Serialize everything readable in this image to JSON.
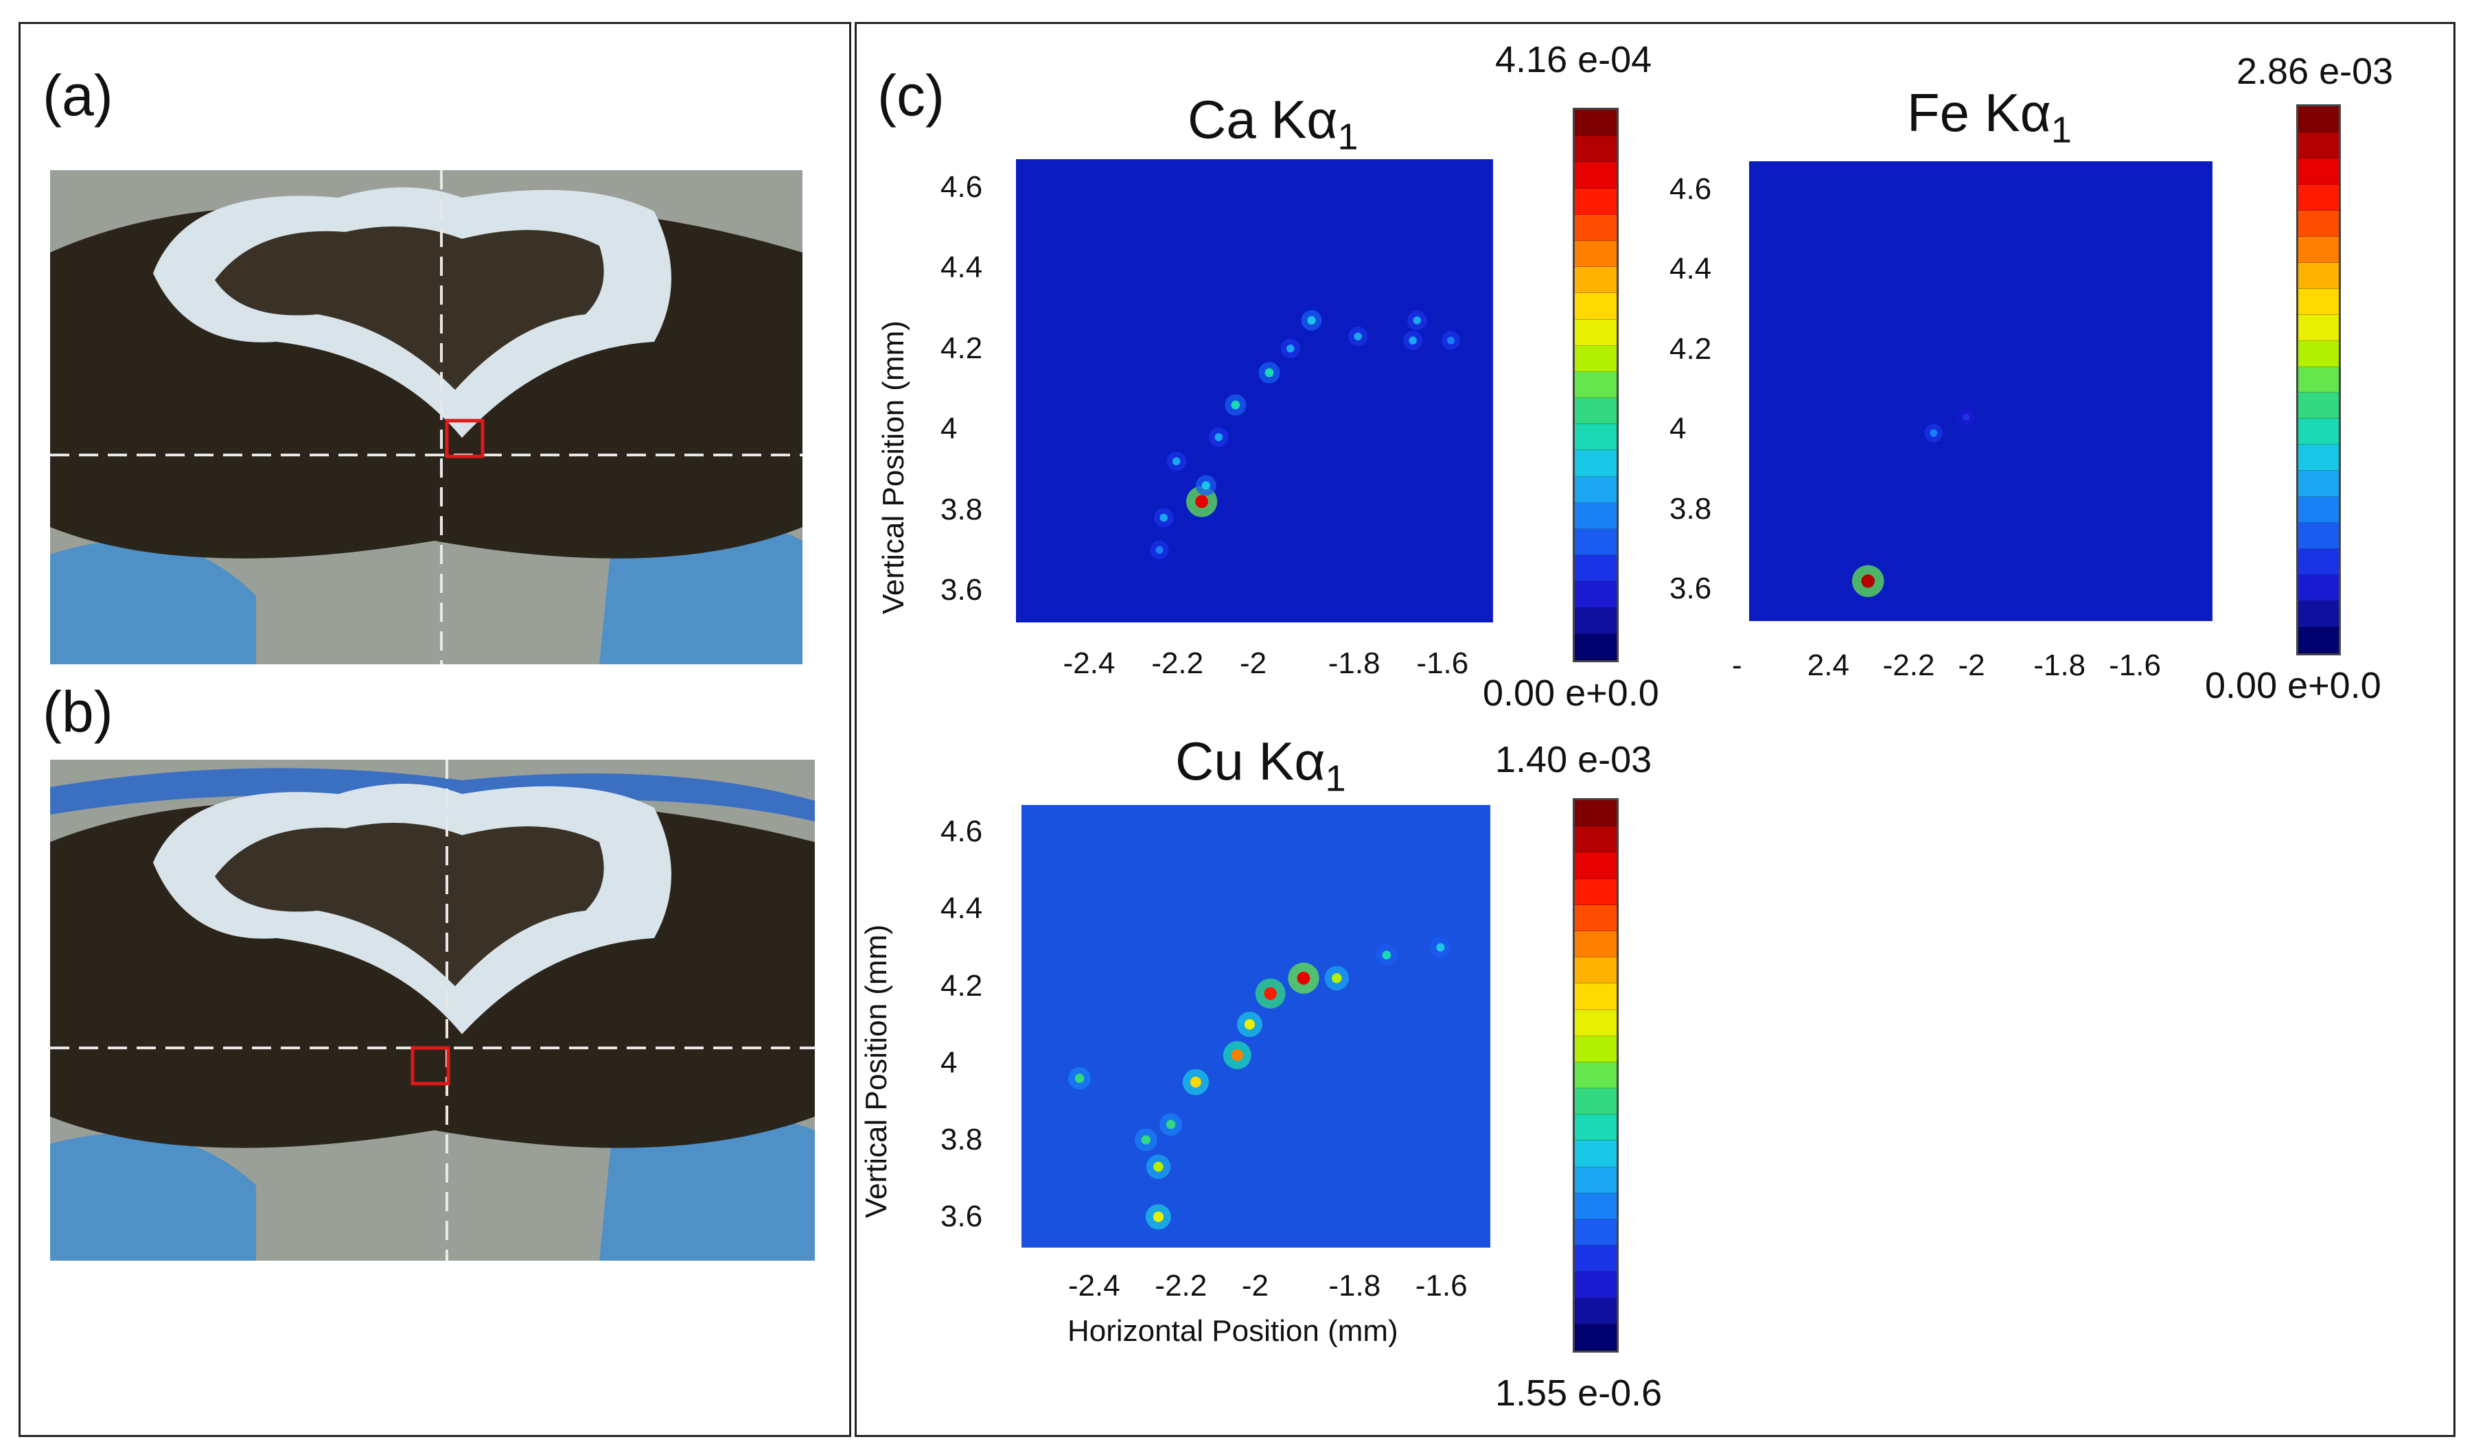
{
  "panels": {
    "a": "(a)",
    "b": "(b)",
    "c": "(c)"
  },
  "colorbar_colors": [
    "#7f0000",
    "#b30000",
    "#e60000",
    "#ff1a00",
    "#ff4d00",
    "#ff8000",
    "#ffb300",
    "#ffd900",
    "#e6f000",
    "#b3f000",
    "#66e64d",
    "#33d980",
    "#1ad9b3",
    "#1ac6e6",
    "#1aa6f0",
    "#1a80f5",
    "#1a5cf0",
    "#1a33e6",
    "#1a1ad1",
    "#10109f",
    "#00006e"
  ],
  "chart_data": [
    {
      "type": "heatmap",
      "title": "Ca Kα",
      "title_sub": "1",
      "xlabel": "",
      "ylabel": "Vertical Position (mm)",
      "x_ticks": [
        "-2.4",
        "-2.2",
        "-2",
        "-1.8",
        "-1.6"
      ],
      "y_ticks": [
        "4.6",
        "4.4",
        "4.2",
        "4",
        "3.8",
        "3.6"
      ],
      "xlim": [
        -2.58,
        -1.45
      ],
      "ylim": [
        3.52,
        4.67
      ],
      "colorbar_max": "4.16 e-04",
      "colorbar_min": "0.00 e+0.0",
      "hotspots": [
        {
          "x": -2.14,
          "y": 3.82,
          "v": 0.9
        },
        {
          "x": -2.13,
          "y": 3.86,
          "v": 0.35
        },
        {
          "x": -2.23,
          "y": 3.78,
          "v": 0.3
        },
        {
          "x": -2.24,
          "y": 3.7,
          "v": 0.25
        },
        {
          "x": -2.2,
          "y": 3.92,
          "v": 0.3
        },
        {
          "x": -2.1,
          "y": 3.98,
          "v": 0.3
        },
        {
          "x": -2.06,
          "y": 4.06,
          "v": 0.4
        },
        {
          "x": -1.98,
          "y": 4.14,
          "v": 0.4
        },
        {
          "x": -1.93,
          "y": 4.2,
          "v": 0.3
        },
        {
          "x": -1.88,
          "y": 4.27,
          "v": 0.35
        },
        {
          "x": -1.77,
          "y": 4.23,
          "v": 0.3
        },
        {
          "x": -1.64,
          "y": 4.22,
          "v": 0.3
        },
        {
          "x": -1.63,
          "y": 4.27,
          "v": 0.3
        },
        {
          "x": -1.55,
          "y": 4.22,
          "v": 0.25
        }
      ]
    },
    {
      "type": "heatmap",
      "title": "Fe Kα",
      "title_sub": "1",
      "xlabel": "",
      "ylabel": "",
      "x_ticks": [
        "-",
        "2.4",
        "-2.2",
        "-2",
        "-1.8",
        "-1.6"
      ],
      "y_ticks": [
        "4.6",
        "4.4",
        "4.2",
        "4",
        "3.8",
        "3.6"
      ],
      "xlim": [
        -2.58,
        -1.45
      ],
      "ylim": [
        3.52,
        4.67
      ],
      "colorbar_max": "2.86 e-03",
      "colorbar_min": "0.00 e+0.0",
      "hotspots": [
        {
          "x": -2.29,
          "y": 3.62,
          "v": 0.95
        },
        {
          "x": -2.13,
          "y": 3.99,
          "v": 0.25
        },
        {
          "x": -2.05,
          "y": 4.03,
          "v": 0.15
        }
      ]
    },
    {
      "type": "heatmap",
      "title": "Cu Kα",
      "title_sub": "1",
      "xlabel": "Horizontal Position (mm)",
      "ylabel": "Vertical Position (mm)",
      "x_ticks": [
        "-2.4",
        "-2.2",
        "-2",
        "-1.8",
        "-1.6"
      ],
      "y_ticks": [
        "4.6",
        "4.4",
        "4.2",
        "4",
        "3.8",
        "3.6"
      ],
      "xlim": [
        -2.58,
        -1.45
      ],
      "ylim": [
        3.52,
        4.67
      ],
      "colorbar_max": "1.40 e-03",
      "colorbar_min": "1.55 e-0.6",
      "hotspots": [
        {
          "x": -2.44,
          "y": 3.96,
          "v": 0.45
        },
        {
          "x": -2.25,
          "y": 3.6,
          "v": 0.6
        },
        {
          "x": -2.25,
          "y": 3.73,
          "v": 0.55
        },
        {
          "x": -2.28,
          "y": 3.8,
          "v": 0.45
        },
        {
          "x": -2.22,
          "y": 3.84,
          "v": 0.45
        },
        {
          "x": -2.16,
          "y": 3.95,
          "v": 0.65
        },
        {
          "x": -2.06,
          "y": 4.02,
          "v": 0.75
        },
        {
          "x": -2.03,
          "y": 4.1,
          "v": 0.6
        },
        {
          "x": -1.98,
          "y": 4.18,
          "v": 0.85
        },
        {
          "x": -1.9,
          "y": 4.22,
          "v": 0.9
        },
        {
          "x": -1.82,
          "y": 4.22,
          "v": 0.55
        },
        {
          "x": -1.7,
          "y": 4.28,
          "v": 0.4
        },
        {
          "x": -1.57,
          "y": 4.3,
          "v": 0.35
        }
      ]
    }
  ]
}
